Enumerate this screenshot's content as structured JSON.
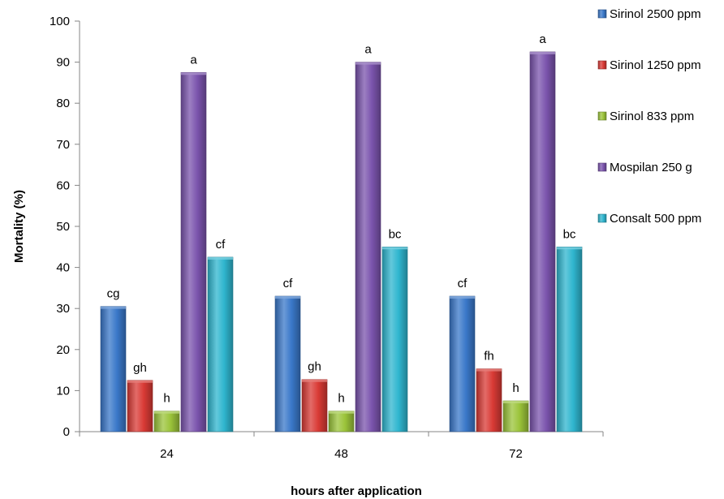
{
  "chart_data": {
    "type": "bar",
    "categories": [
      "24",
      "48",
      "72"
    ],
    "series": [
      {
        "name": "Sirinol 2500 ppm",
        "color": "#3a78c9",
        "values": [
          30.5,
          33,
          33
        ],
        "labels": [
          "cg",
          "cf",
          "cf"
        ]
      },
      {
        "name": "Sirinol 1250 ppm",
        "color": "#d93a35",
        "values": [
          12.5,
          12.7,
          15.3
        ],
        "labels": [
          "gh",
          "gh",
          "fh"
        ]
      },
      {
        "name": "Sirinol 833 ppm",
        "color": "#9bc43a",
        "values": [
          5,
          5,
          7.5
        ],
        "labels": [
          "h",
          "h",
          "h"
        ]
      },
      {
        "name": "Mospilan 250 g",
        "color": "#7b54ad",
        "values": [
          87.5,
          90,
          92.5
        ],
        "labels": [
          "a",
          "a",
          "a"
        ]
      },
      {
        "name": "Consalt 500 ppm",
        "color": "#2fb6cf",
        "values": [
          42.5,
          45,
          45
        ],
        "labels": [
          "cf",
          "bc",
          "bc"
        ]
      }
    ],
    "xlabel": "hours after application",
    "ylabel": "Mortality (%)",
    "ylim": [
      0,
      100
    ],
    "yticks": [
      0,
      10,
      20,
      30,
      40,
      50,
      60,
      70,
      80,
      90,
      100
    ],
    "grid": false,
    "legend_position": "right"
  }
}
